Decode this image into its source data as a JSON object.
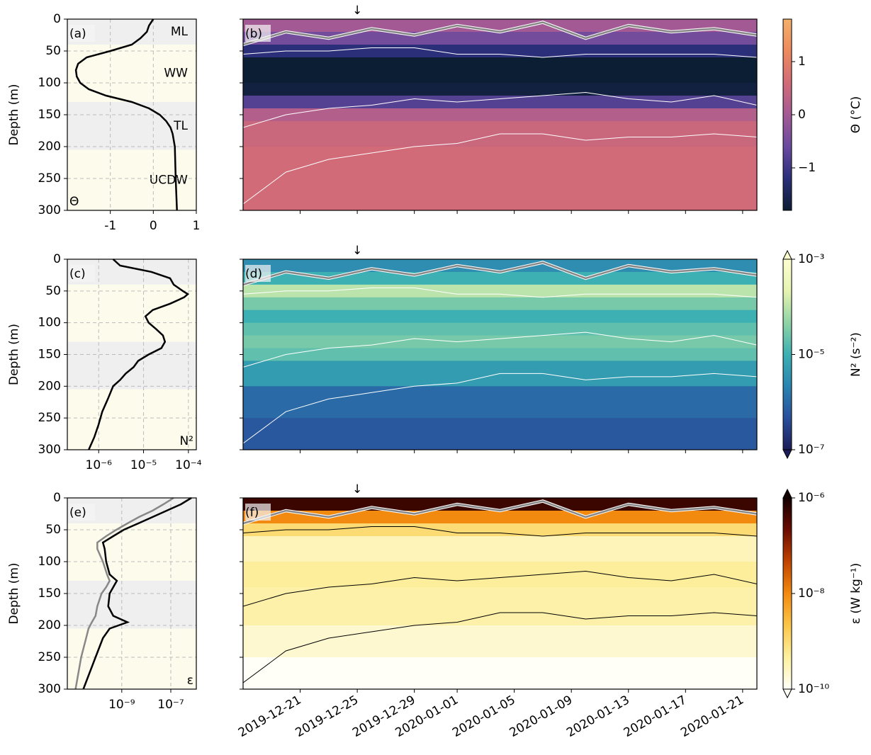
{
  "chart_data": [
    {
      "type": "profile",
      "panel_label": "(a)",
      "ylabel": "Depth (m)",
      "ylim": [
        300,
        0
      ],
      "yticks": [
        0,
        50,
        100,
        150,
        200,
        250,
        300
      ],
      "xscale": "linear",
      "xlim": [
        -2,
        1
      ],
      "xticks": [
        -1,
        0,
        1
      ],
      "grid": true,
      "layers": [
        {
          "label": "ML",
          "top": 0,
          "bottom": 40,
          "color": "#efefef"
        },
        {
          "label": "WW",
          "top": 40,
          "bottom": 130,
          "color": "#fdfbec"
        },
        {
          "label": "TL",
          "top": 130,
          "bottom": 205,
          "color": "#efefef"
        },
        {
          "label": "UCDW",
          "top": 205,
          "bottom": 300,
          "color": "#fdfbec"
        }
      ],
      "depth": [
        0,
        10,
        20,
        30,
        40,
        50,
        60,
        70,
        80,
        90,
        100,
        110,
        120,
        130,
        140,
        150,
        160,
        170,
        180,
        200,
        250,
        300
      ],
      "series": [
        {
          "color": "#000000",
          "values": [
            0,
            -0.1,
            -0.15,
            -0.3,
            -0.5,
            -1.0,
            -1.55,
            -1.75,
            -1.8,
            -1.78,
            -1.7,
            -1.5,
            -1.1,
            -0.5,
            -0.1,
            0.15,
            0.3,
            0.4,
            0.45,
            0.5,
            0.52,
            0.55
          ]
        }
      ],
      "corner_label": "Θ",
      "corner_position": "lower left"
    },
    {
      "type": "heatmap",
      "panel_label": "(b)",
      "arrow": "↓",
      "arrow_x": "2019-12-25",
      "xlim": [
        "2019-12-17",
        "2020-01-22"
      ],
      "ylim": [
        300,
        0
      ],
      "depth_bins": [
        0,
        20,
        40,
        60,
        80,
        100,
        120,
        140,
        160,
        200,
        250,
        300
      ],
      "values": [
        0.0,
        -0.5,
        -1.2,
        -1.8,
        -1.8,
        -1.7,
        -0.8,
        0.2,
        0.5,
        0.6,
        0.6
      ],
      "cscale": "linear",
      "clim": [
        -1.8,
        1.8
      ],
      "cticks": [
        {
          "value": -1,
          "label": "−1"
        },
        0,
        1
      ],
      "clabel": "Θ (°C)",
      "extend": "neither",
      "colormap": [
        "#0c1e33",
        "#2b2f7a",
        "#6a4a9e",
        "#a35a94",
        "#d16b78",
        "#ec8a5e",
        "#f4b06a"
      ],
      "contour_x": [
        "2019-12-17",
        "2019-12-20",
        "2019-12-23",
        "2019-12-26",
        "2019-12-29",
        "2020-01-01",
        "2020-01-04",
        "2020-01-07",
        "2020-01-10",
        "2020-01-13",
        "2020-01-16",
        "2020-01-19",
        "2020-01-22"
      ],
      "contours": [
        {
          "color": "#888888",
          "width": 2.5,
          "values": [
            40,
            20,
            30,
            15,
            25,
            10,
            20,
            5,
            30,
            10,
            20,
            15,
            25
          ]
        },
        {
          "color": "#ffffff",
          "width": 1,
          "values": [
            55,
            50,
            50,
            45,
            45,
            55,
            55,
            60,
            55,
            55,
            55,
            55,
            60
          ]
        },
        {
          "color": "#ffffff",
          "width": 1,
          "values": [
            170,
            150,
            140,
            135,
            125,
            130,
            125,
            120,
            115,
            125,
            130,
            120,
            135
          ]
        },
        {
          "color": "#ffffff",
          "width": 1,
          "values": [
            290,
            240,
            220,
            210,
            200,
            195,
            180,
            180,
            190,
            185,
            185,
            180,
            185
          ]
        }
      ]
    },
    {
      "type": "profile",
      "panel_label": "(c)",
      "ylabel": "Depth (m)",
      "ylim": [
        300,
        0
      ],
      "yticks": [
        0,
        50,
        100,
        150,
        200,
        250,
        300
      ],
      "xscale": "log",
      "xlim": [
        2e-07,
        0.00015
      ],
      "xticks": [
        {
          "value": 1e-06,
          "label": "10⁻⁶"
        },
        {
          "value": 1e-05,
          "label": "10⁻⁵"
        },
        {
          "value": 0.0001,
          "label": "10⁻⁴"
        }
      ],
      "grid": true,
      "depth": [
        0,
        10,
        20,
        30,
        40,
        50,
        55,
        60,
        70,
        80,
        90,
        100,
        110,
        120,
        130,
        140,
        150,
        160,
        170,
        180,
        190,
        200,
        220,
        240,
        260,
        280,
        300
      ],
      "series": [
        {
          "color": "#000000",
          "values": [
            2.1e-06,
            3e-06,
            1.5e-05,
            3.9e-05,
            4.7e-05,
            7.5e-05,
            9.7e-05,
            8e-05,
            3.9e-05,
            1.6e-05,
            1.1e-05,
            1.3e-05,
            1.9e-05,
            2.7e-05,
            3e-05,
            2.5e-05,
            1.3e-05,
            7.6e-06,
            6e-06,
            4e-06,
            3e-06,
            2.1e-06,
            1.6e-06,
            1.2e-06,
            1e-06,
            8e-07,
            6e-07
          ]
        }
      ],
      "corner_label": "N²",
      "corner_position": "lower right"
    },
    {
      "type": "heatmap",
      "panel_label": "(d)",
      "arrow": "↓",
      "arrow_x": "2019-12-25",
      "xlim": [
        "2019-12-17",
        "2020-01-22"
      ],
      "ylim": [
        300,
        0
      ],
      "depth_bins": [
        0,
        20,
        40,
        60,
        80,
        100,
        120,
        140,
        160,
        200,
        250,
        300
      ],
      "values": [
        3e-06,
        1e-05,
        0.0001,
        3e-05,
        1e-05,
        2e-05,
        3e-05,
        2e-05,
        5e-06,
        1e-06,
        6e-07
      ],
      "cscale": "log",
      "clim": [
        1e-07,
        0.001
      ],
      "cticks": [
        {
          "value": 1e-07,
          "label": "10⁻⁷"
        },
        {
          "value": 1e-05,
          "label": "10⁻⁵"
        },
        {
          "value": 0.001,
          "label": "10⁻³"
        }
      ],
      "clabel": "N² (s⁻²)",
      "extend": "both",
      "colormap": [
        "#1c1d58",
        "#2a4f9c",
        "#2a84b0",
        "#3cb0b2",
        "#8fd3a6",
        "#e6f3b2",
        "#fdfed0"
      ],
      "contour_x": [
        "2019-12-17",
        "2019-12-20",
        "2019-12-23",
        "2019-12-26",
        "2019-12-29",
        "2020-01-01",
        "2020-01-04",
        "2020-01-07",
        "2020-01-10",
        "2020-01-13",
        "2020-01-16",
        "2020-01-19",
        "2020-01-22"
      ],
      "contours": [
        {
          "color": "#888888",
          "width": 2.5,
          "values": [
            40,
            20,
            30,
            15,
            25,
            10,
            20,
            5,
            30,
            10,
            20,
            15,
            25
          ]
        },
        {
          "color": "#ffffff",
          "width": 1,
          "values": [
            55,
            50,
            50,
            45,
            45,
            55,
            55,
            60,
            55,
            55,
            55,
            55,
            60
          ]
        },
        {
          "color": "#ffffff",
          "width": 1,
          "values": [
            170,
            150,
            140,
            135,
            125,
            130,
            125,
            120,
            115,
            125,
            130,
            120,
            135
          ]
        },
        {
          "color": "#ffffff",
          "width": 1,
          "values": [
            290,
            240,
            220,
            210,
            200,
            195,
            180,
            180,
            190,
            185,
            185,
            180,
            185
          ]
        }
      ]
    },
    {
      "type": "profile",
      "panel_label": "(e)",
      "ylabel": "Depth (m)",
      "ylim": [
        300,
        0
      ],
      "yticks": [
        0,
        50,
        100,
        150,
        200,
        250,
        300
      ],
      "xscale": "log",
      "xlim": [
        6e-12,
        1.1e-06
      ],
      "xticks": [
        {
          "value": 1e-09,
          "label": "10⁻⁹"
        },
        {
          "value": 1e-07,
          "label": "10⁻⁷"
        }
      ],
      "grid": true,
      "depth": [
        0,
        10,
        20,
        30,
        40,
        50,
        60,
        70,
        80,
        100,
        120,
        130,
        140,
        150,
        170,
        185,
        195,
        205,
        220,
        250,
        300
      ],
      "series": [
        {
          "color": "#888888",
          "values": [
            1.3e-07,
            5e-08,
            1.8e-08,
            5e-09,
            1.7e-09,
            6e-10,
            2.3e-10,
            1e-10,
            1e-10,
            1.7e-10,
            2.5e-10,
            3.2e-10,
            2.3e-10,
            1.5e-10,
            1e-10,
            8.5e-11,
            6e-11,
            4.4e-11,
            3.5e-11,
            2.2e-11,
            1.3e-11
          ]
        },
        {
          "color": "#000000",
          "values": [
            6.9e-07,
            2.6e-07,
            6.8e-08,
            1.8e-08,
            4.7e-09,
            1.2e-09,
            4.5e-10,
            1.7e-10,
            2e-10,
            2.3e-10,
            3.2e-10,
            6.3e-10,
            4.5e-10,
            3.2e-10,
            2.8e-10,
            4.5e-10,
            1.7e-09,
            3.2e-10,
            1.7e-10,
            8.5e-11,
            2.7e-11
          ]
        }
      ],
      "corner_label": "ε",
      "corner_position": "lower right"
    },
    {
      "type": "heatmap",
      "panel_label": "(f)",
      "arrow": "↓",
      "arrow_x": "2019-12-25",
      "xlim": [
        "2019-12-17",
        "2020-01-22"
      ],
      "ylim": [
        300,
        0
      ],
      "xticks": [
        "2019-12-21",
        "2019-12-25",
        "2019-12-29",
        "2020-01-01",
        "2020-01-05",
        "2020-01-09",
        "2020-01-13",
        "2020-01-17",
        "2020-01-21"
      ],
      "depth_bins": [
        0,
        20,
        40,
        60,
        80,
        100,
        120,
        140,
        160,
        200,
        250,
        300
      ],
      "values": [
        5e-07,
        1e-08,
        1e-09,
        3e-10,
        3e-10,
        5e-10,
        5e-10,
        4e-10,
        4e-10,
        2e-10,
        1e-10
      ],
      "cscale": "log",
      "clim": [
        1e-10,
        1e-06
      ],
      "cticks": [
        {
          "value": 1e-10,
          "label": "10⁻¹⁰"
        },
        {
          "value": 1e-08,
          "label": "10⁻⁸"
        },
        {
          "value": 1e-06,
          "label": "10⁻⁶"
        }
      ],
      "clabel": "ε (W kg⁻¹)",
      "extend": "both",
      "colormap": [
        "#fffff8",
        "#fdf0a0",
        "#fbc64a",
        "#f28a10",
        "#c04400",
        "#6a0c00",
        "#140000"
      ],
      "contour_x": [
        "2019-12-17",
        "2019-12-20",
        "2019-12-23",
        "2019-12-26",
        "2019-12-29",
        "2020-01-01",
        "2020-01-04",
        "2020-01-07",
        "2020-01-10",
        "2020-01-13",
        "2020-01-16",
        "2020-01-19",
        "2020-01-22"
      ],
      "contours": [
        {
          "color": "#888888",
          "width": 2.5,
          "values": [
            40,
            20,
            30,
            15,
            25,
            10,
            20,
            5,
            30,
            10,
            20,
            15,
            25
          ]
        },
        {
          "color": "#000000",
          "width": 1,
          "values": [
            55,
            50,
            50,
            45,
            45,
            55,
            55,
            60,
            55,
            55,
            55,
            55,
            60
          ]
        },
        {
          "color": "#000000",
          "width": 1,
          "values": [
            170,
            150,
            140,
            135,
            125,
            130,
            125,
            120,
            115,
            125,
            130,
            120,
            135
          ]
        },
        {
          "color": "#000000",
          "width": 1,
          "values": [
            290,
            240,
            220,
            210,
            200,
            195,
            180,
            180,
            190,
            185,
            185,
            180,
            185
          ]
        }
      ]
    }
  ]
}
